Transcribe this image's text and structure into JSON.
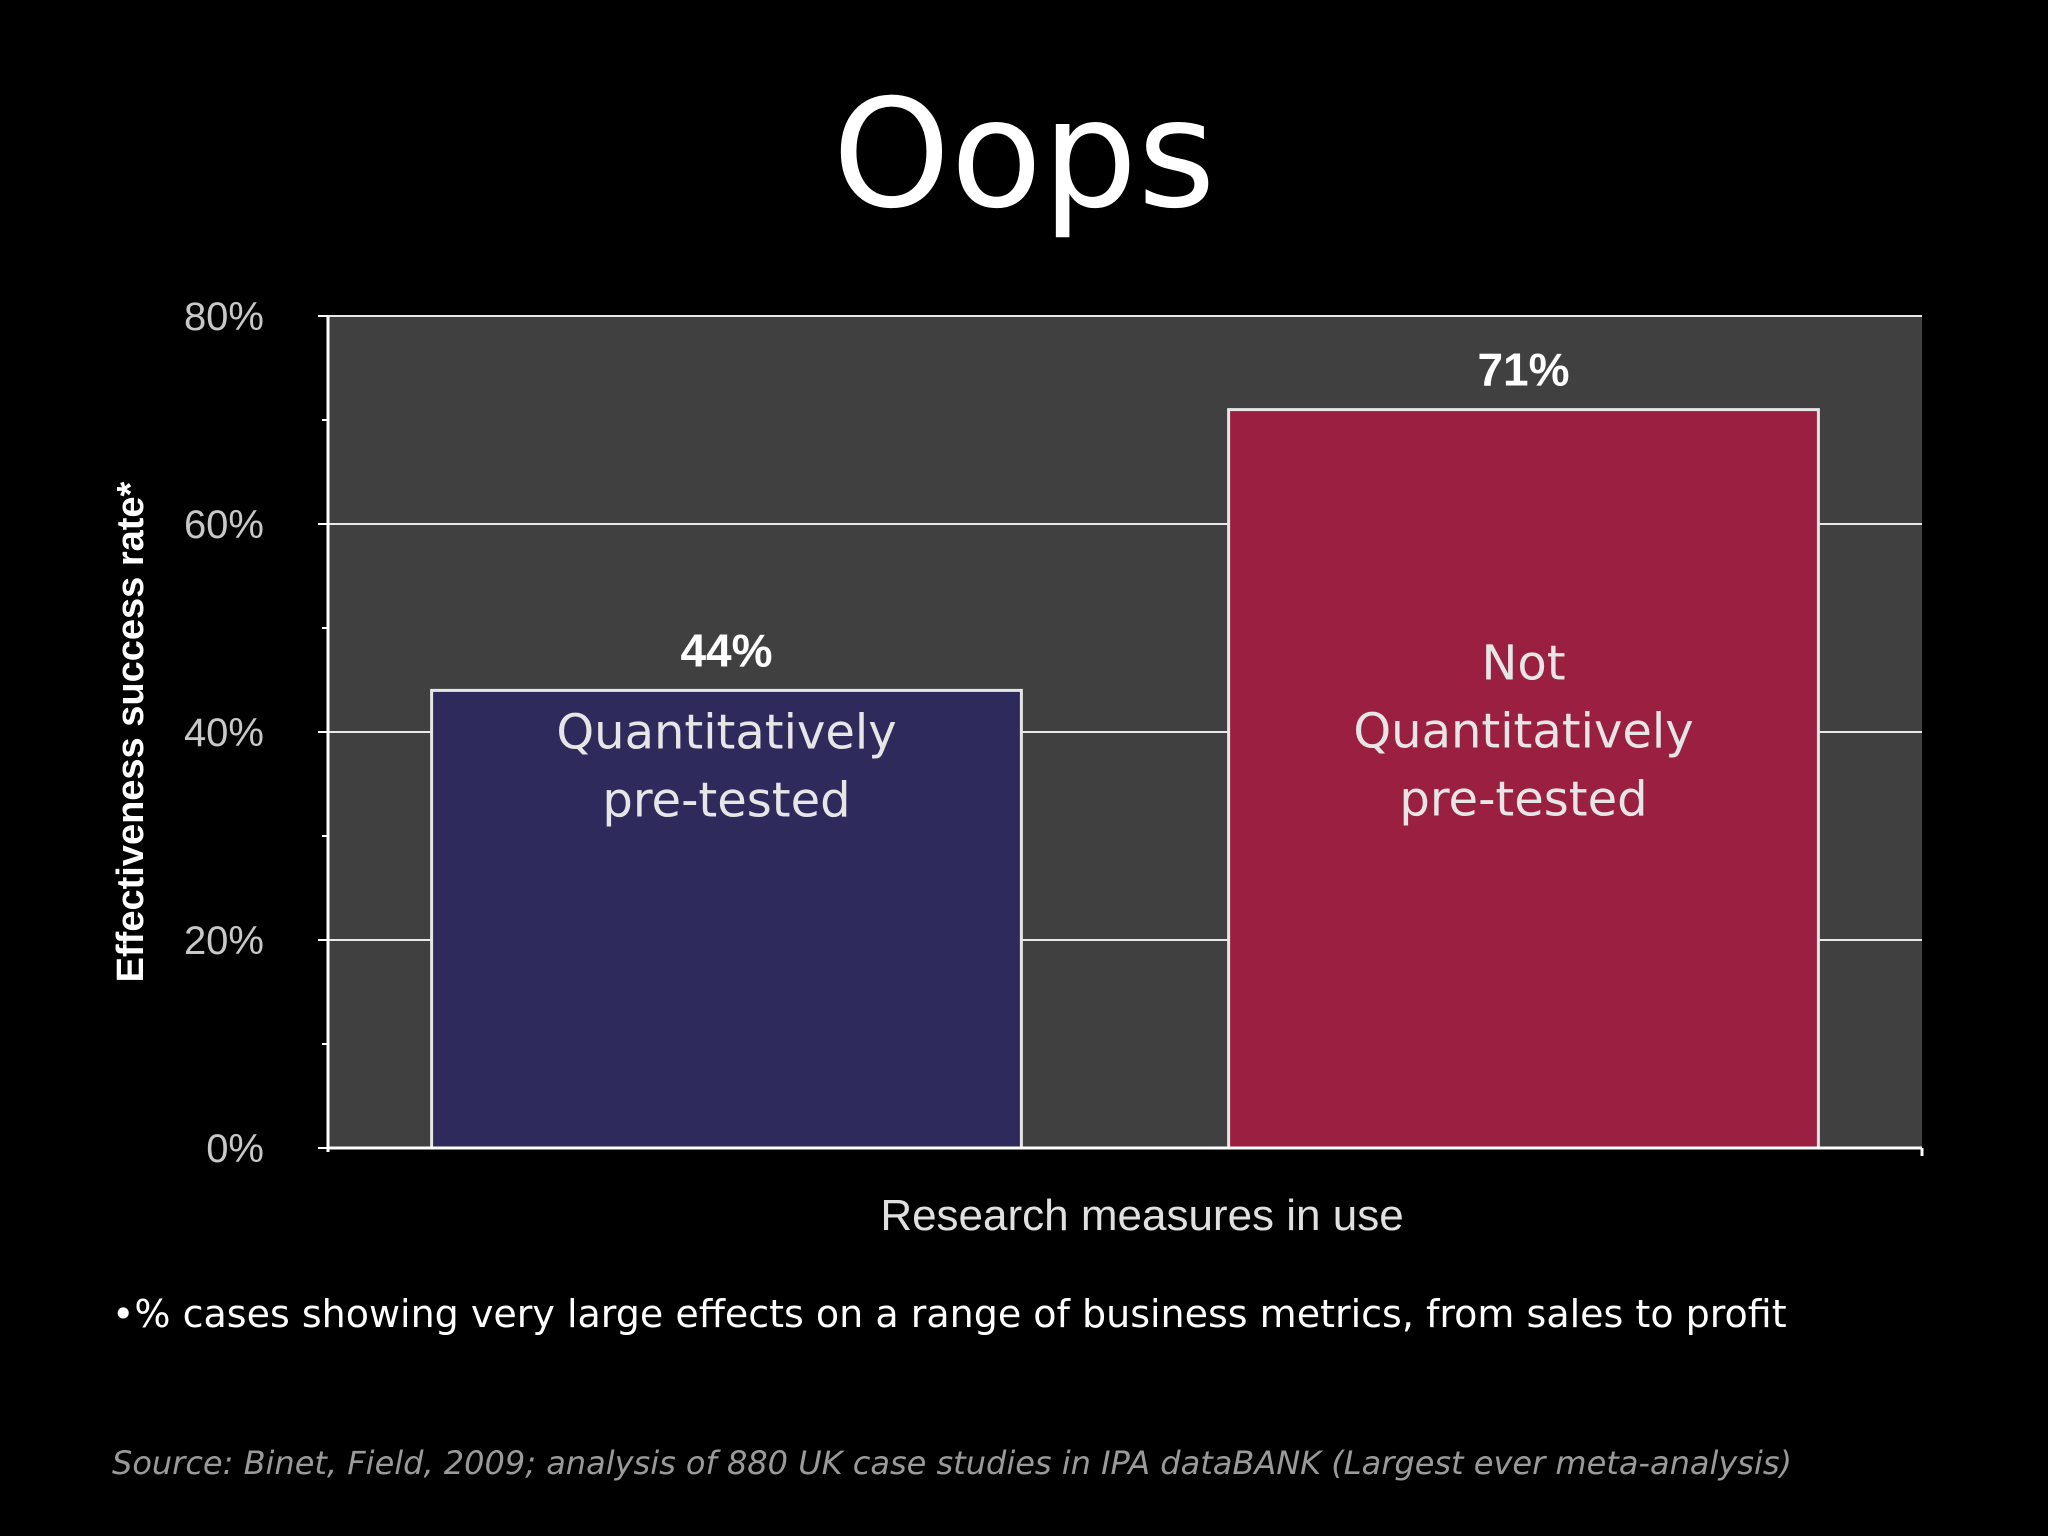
{
  "slide": {
    "title": "Oops",
    "footnote": "•% cases showing very large effects on a range of business metrics, from sales to profit",
    "source": "Source: Binet, Field, 2009; analysis of 880 UK case studies in IPA dataBANK (Largest ever meta-analysis)"
  },
  "chart_data": {
    "type": "bar",
    "title": "",
    "xlabel": "Research measures in use",
    "ylabel": "Effectiveness success rate*",
    "ylim": [
      0,
      80
    ],
    "yticks": [
      0,
      20,
      40,
      60,
      80
    ],
    "ytick_labels": [
      "0%",
      "20%",
      "40%",
      "60%",
      "80%"
    ],
    "grid": true,
    "legend": "none",
    "categories": [
      [
        "Quantitatively",
        "pre-tested"
      ],
      [
        "Not",
        "Quantitatively",
        "pre-tested"
      ]
    ],
    "values": [
      44,
      71
    ],
    "value_labels": [
      "44%",
      "71%"
    ],
    "colors": [
      "#2e2a5c",
      "#9b1f40"
    ],
    "plot_background": "#404040",
    "gridline_color": "#e8e8e8"
  }
}
